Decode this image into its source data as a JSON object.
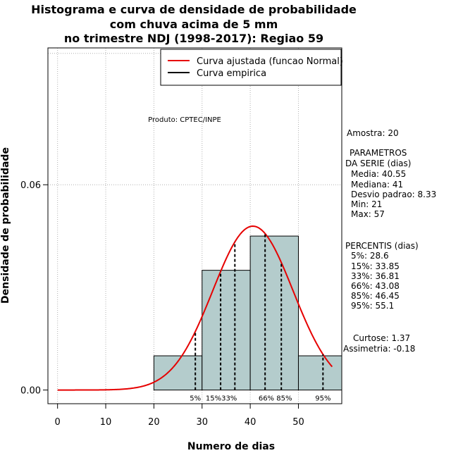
{
  "chart_data": {
    "type": "histogram",
    "title": [
      "Histograma e curva de densidade de probabilidade",
      "com chuva acima de 5 mm",
      "no trimestre NDJ (1998-2017): Regiao 59"
    ],
    "xlabel": "Numero de dias",
    "ylabel": "Densidade de probabilidade",
    "xlim": [
      -2,
      59
    ],
    "ylim": [
      -0.004,
      0.1
    ],
    "xticks": [
      0,
      10,
      20,
      30,
      40,
      50
    ],
    "xtick_labels": [
      "0",
      "10",
      "20",
      "30",
      "40",
      "50"
    ],
    "yticks": [
      0.0,
      0.06
    ],
    "ytick_labels": [
      "0.00",
      "0.06"
    ],
    "xgrid": [
      0,
      10,
      20,
      30,
      40,
      50
    ],
    "ygrid": [
      0.06,
      0.0984
    ],
    "grid": true,
    "bins": [
      {
        "from": 20,
        "to": 30,
        "density": 0.01
      },
      {
        "from": 30,
        "to": 40,
        "density": 0.035
      },
      {
        "from": 40,
        "to": 50,
        "density": 0.045
      },
      {
        "from": 50,
        "to": 60,
        "density": 0.01
      }
    ],
    "normal_fit": {
      "mean": 40.55,
      "sd": 8.33,
      "x_from": 0,
      "x_to": 57
    },
    "percentile_lines": [
      28.6,
      33.85,
      36.81,
      43.08,
      46.45,
      55.1
    ],
    "percentile_labels": [
      {
        "x": 28.6,
        "text": "5%"
      },
      {
        "x": 34.0,
        "text": "15%33%"
      },
      {
        "x": 45.2,
        "text": "66% 85%"
      },
      {
        "x": 55.1,
        "text": "95%"
      }
    ],
    "legend": {
      "position": "top-right",
      "entries": [
        {
          "label": "Curva ajustada (funcao Normal)",
          "color": "#e60000"
        },
        {
          "label": "Curva empirica",
          "color": "#000000"
        }
      ]
    },
    "annotation": "Produto: CPTEC/INPE",
    "colors": {
      "bar_fill": "#b4cccc",
      "bar_edge": "#000000",
      "curve": "#e60000",
      "grid": "#b0b0b0"
    }
  },
  "sidebar": {
    "amostra": "Amostra: 20",
    "parametros_title": "PARAMETROS",
    "parametros_subtitle": "DA SERIE (dias)",
    "media": "Media: 40.55",
    "mediana": "Mediana: 41",
    "desvio": "Desvio padrao: 8.33",
    "min": "Min: 21",
    "max": "Max: 57",
    "percentis_title": "PERCENTIS (dias)",
    "p5": "5%: 28.6",
    "p15": "15%: 33.85",
    "p33": "33%: 36.81",
    "p66": "66%: 43.08",
    "p85": "85%: 46.45",
    "p95": "95%: 55.1",
    "curtose": "Curtose: 1.37",
    "assimetria": "Assimetria: -0.18"
  }
}
